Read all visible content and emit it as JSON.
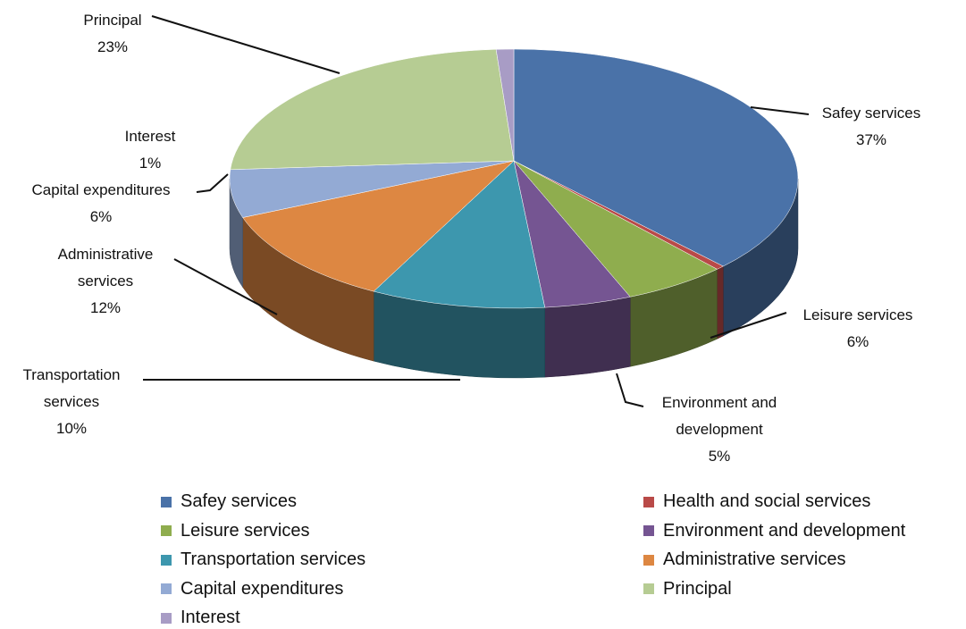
{
  "chart_data": {
    "type": "pie",
    "3d": true,
    "categories": [
      "Safey services",
      "Health and social services",
      "Leisure services",
      "Environment and development",
      "Transportation services",
      "Administrative services",
      "Capital expenditures",
      "Principal",
      "Interest"
    ],
    "values": [
      37,
      0.5,
      6,
      5,
      10,
      12,
      6,
      23,
      1
    ],
    "value_labels": [
      "37%",
      null,
      "6%",
      "5%",
      "10%",
      "12%",
      "6%",
      "23%",
      "1%"
    ],
    "colors": [
      "#4a72a8",
      "#b94a48",
      "#8fad4e",
      "#755592",
      "#3d97ae",
      "#dd8742",
      "#93aad4",
      "#b6cc93",
      "#a89cc5"
    ],
    "legend": "bottom"
  }
}
